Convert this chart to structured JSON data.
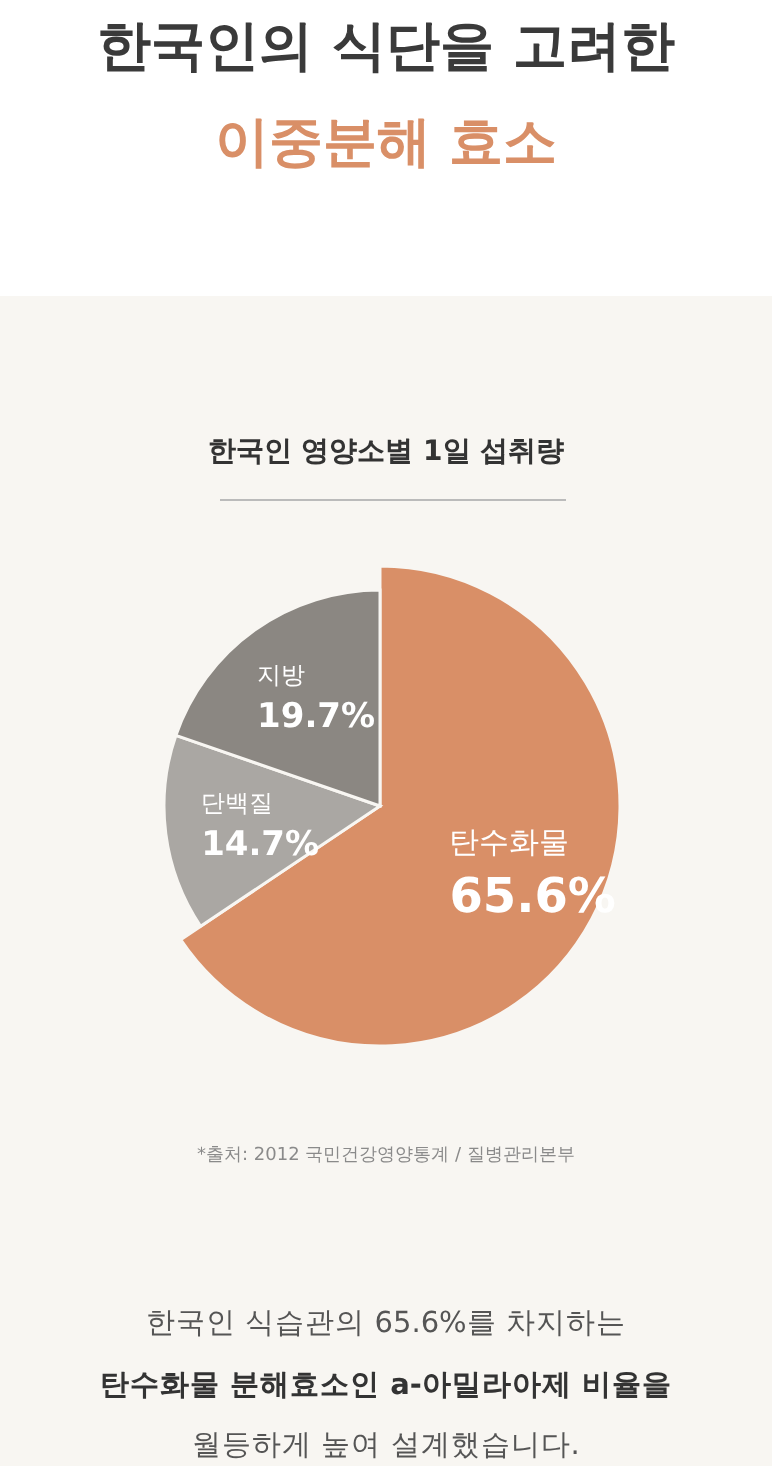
{
  "chart_data": {
    "type": "pie",
    "title": "한국인 영양소별 1일 섭취량",
    "categories": [
      "탄수화물",
      "단백질",
      "지방"
    ],
    "values": [
      65.6,
      14.7,
      19.7
    ],
    "colors": [
      "#d98f67",
      "#aaa7a3",
      "#8b8782"
    ],
    "value_labels": [
      "65.6%",
      "14.7%",
      "19.7%"
    ],
    "annotations": [
      "한국인의 식단을 고려한",
      "이중분해 효소",
      "*출처: 2012 국민건강영양통계 / 질병관리본부",
      "한국인 식습관의 65.6%를 차지하는",
      "탄수화물 분해효소인 a-아밀라아제 비율을",
      "월등하게 높여 설계했습니다."
    ]
  }
}
